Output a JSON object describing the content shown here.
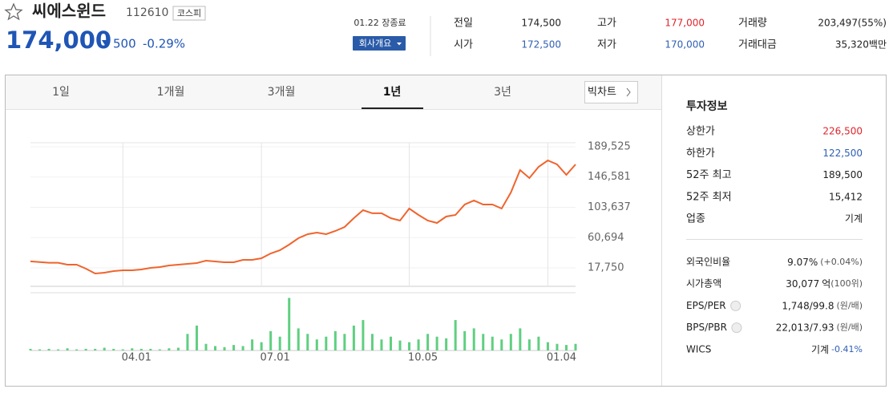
{
  "header": {
    "name": "씨에스윈드",
    "code": "112610",
    "market": "코스피"
  },
  "quote": {
    "price": "174,000",
    "change": "500",
    "change_pct": "-0.29%",
    "status": "01.22 장종료",
    "company_button": "회사개요"
  },
  "summary": [
    {
      "label": "전일",
      "value": "174,500"
    },
    {
      "label": "고가",
      "value": "177,000",
      "color": "#e0242b"
    },
    {
      "label": "거래량",
      "value": "203,497(55%)"
    },
    {
      "label": "시가",
      "value": "172,500",
      "color": "#2f5fb3"
    },
    {
      "label": "저가",
      "value": "170,000",
      "color": "#2f5fb3"
    },
    {
      "label": "거래대금",
      "value": "35,320백만"
    }
  ],
  "tabs": [
    "1일",
    "1개월",
    "3개월",
    "1년",
    "3년"
  ],
  "active_tab": 3,
  "big_chart": "빅차트",
  "invest": {
    "title": "투자정보",
    "rows": [
      {
        "label": "상한가",
        "value": "226,500",
        "color": "#e0242b"
      },
      {
        "label": "하한가",
        "value": "122,500",
        "color": "#2f5fb3"
      },
      {
        "label": "52주 최고",
        "value": "189,500"
      },
      {
        "label": "52주 최저",
        "value": "15,412"
      },
      {
        "label": "업종",
        "value": "기계"
      }
    ],
    "rows2": [
      {
        "label": "외국인비율",
        "value": "9.07%",
        "note": "(+0.04%)"
      },
      {
        "label": "시가총액",
        "value": "30,077",
        "unit": "억",
        "note": "(100위)"
      },
      {
        "label": "EPS/PER",
        "help": true,
        "value": "1,748/99.8",
        "note": "(원/배)"
      },
      {
        "label": "BPS/PBR",
        "help": true,
        "value": "22,013/7.93",
        "note": "(원/배)"
      },
      {
        "label": "WICS",
        "value": "기계",
        "note": "-0.41%",
        "note_color": "#2f5fb3"
      }
    ]
  },
  "chart_data": {
    "type": "line",
    "color": "#f0642d",
    "grid": true,
    "categories": [
      null,
      null,
      null,
      null,
      null,
      null,
      null,
      null,
      null,
      null,
      "04.01",
      null,
      null,
      null,
      null,
      null,
      null,
      null,
      null,
      null,
      null,
      null,
      null,
      null,
      null,
      "07.01",
      null,
      null,
      null,
      null,
      null,
      null,
      null,
      null,
      null,
      null,
      null,
      null,
      null,
      null,
      null,
      "10.05",
      null,
      null,
      null,
      null,
      null,
      null,
      null,
      null,
      null,
      null,
      null,
      null,
      null,
      null,
      "01.04",
      null,
      null,
      null
    ],
    "values": [
      27000,
      26000,
      25000,
      25000,
      22300,
      22300,
      16600,
      9800,
      10900,
      13200,
      14300,
      14300,
      15500,
      17750,
      18900,
      21200,
      22300,
      23400,
      24600,
      28000,
      26850,
      25700,
      25700,
      29100,
      29100,
      31400,
      38200,
      42800,
      50700,
      59800,
      65500,
      67800,
      65500,
      70100,
      75800,
      88300,
      99700,
      95200,
      95200,
      88300,
      84900,
      101900,
      92800,
      84900,
      81500,
      90600,
      92800,
      107600,
      113300,
      107600,
      107600,
      101900,
      124700,
      156500,
      145200,
      161100,
      170200,
      164500,
      149700,
      164500
    ],
    "ylim": [
      -8400,
      195200
    ],
    "yticks": [
      {
        "value": 17750,
        "label": "17,750"
      },
      {
        "value": 60694,
        "label": "60,694"
      },
      {
        "value": 103637,
        "label": "103,637"
      },
      {
        "value": 146581,
        "label": "146,581"
      },
      {
        "value": 189525,
        "label": "189,525"
      }
    ],
    "volume": {
      "color": "#5fcf80",
      "ylim": [
        0,
        100
      ],
      "values": [
        3,
        2,
        3,
        2,
        4,
        2,
        3,
        3,
        5,
        3,
        2,
        4,
        3,
        3,
        2,
        4,
        5,
        30,
        45,
        12,
        8,
        6,
        10,
        8,
        20,
        15,
        35,
        25,
        95,
        40,
        30,
        20,
        25,
        35,
        30,
        45,
        55,
        30,
        20,
        25,
        18,
        15,
        20,
        30,
        25,
        22,
        55,
        35,
        40,
        30,
        25,
        20,
        30,
        40,
        20,
        25,
        15,
        12,
        10,
        12
      ]
    }
  }
}
